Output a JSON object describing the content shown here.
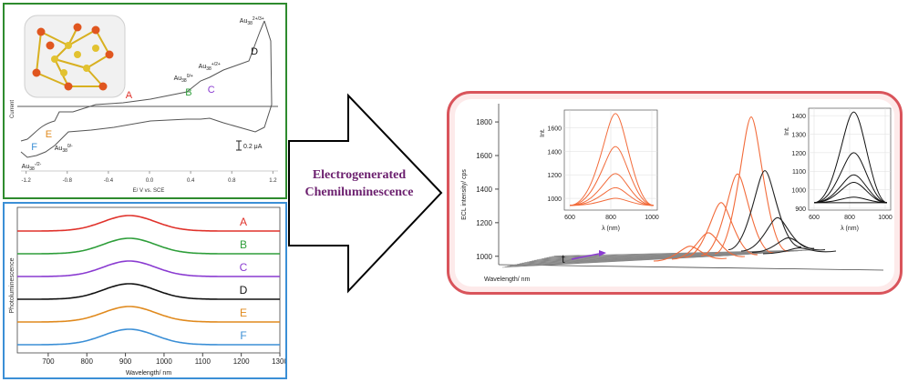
{
  "center_label": {
    "line1": "Electrogenerated",
    "line2": "Chemiluminescence"
  },
  "chart_data": [
    {
      "type": "line",
      "panel": "cyclic voltammogram",
      "title": "",
      "xlabel": "E/ V vs. SCE",
      "ylabel": "Current",
      "x_ticks": [
        "-1.2",
        "-0.8",
        "-0.4",
        "0.0",
        "0.4",
        "0.8",
        "1.2"
      ],
      "xlim": [
        -1.25,
        1.25
      ],
      "scale_bar": "0.2 μA",
      "peak_labels": [
        {
          "label": "A",
          "color": "#e0322b",
          "x": -0.2
        },
        {
          "label": "B",
          "color": "#2e9e3a",
          "x": 0.38
        },
        {
          "label": "C",
          "color": "#8a3bd1",
          "x": 0.6
        },
        {
          "label": "D",
          "color": "#111111",
          "x": 1.02
        },
        {
          "label": "E",
          "color": "#e08a1e",
          "x": -0.98
        },
        {
          "label": "F",
          "color": "#3b8fd6",
          "x": -1.12
        }
      ],
      "charge_states": [
        {
          "base": "Au",
          "sub": "38",
          "sup": "2+/3+",
          "x": 1.0
        },
        {
          "base": "Au",
          "sub": "38",
          "sup": "+/2+",
          "x": 0.6
        },
        {
          "base": "Au",
          "sub": "38",
          "sup": "0/+",
          "x": 0.36
        },
        {
          "base": "Au",
          "sub": "38",
          "sup": "0/-",
          "x": -0.8
        },
        {
          "base": "Au",
          "sub": "38",
          "sup": "-/2-",
          "x": -1.12
        }
      ]
    },
    {
      "type": "line",
      "panel": "photoluminescence spectra",
      "title": "",
      "xlabel": "Wavelength/ nm",
      "ylabel": "Photoluminescence",
      "x_ticks": [
        700,
        800,
        900,
        1000,
        1100,
        1200,
        1300
      ],
      "xlim": [
        620,
        1300
      ],
      "peak_nm": 910,
      "series": [
        {
          "name": "A",
          "color": "#e0322b"
        },
        {
          "name": "B",
          "color": "#2e9e3a"
        },
        {
          "name": "C",
          "color": "#8a3bd1"
        },
        {
          "name": "D",
          "color": "#111111"
        },
        {
          "name": "E",
          "color": "#e08a1e"
        },
        {
          "name": "F",
          "color": "#3b8fd6"
        }
      ]
    },
    {
      "type": "line",
      "panel": "ECL spectra vs time",
      "title": "",
      "xlabel": "Wavelength/ nm",
      "ylabel": "ECL intensity/ cps",
      "y_ticks": [
        1000,
        1200,
        1400,
        1600,
        1800
      ],
      "ylim": [
        950,
        1860
      ],
      "time_label": "t",
      "orange_peaks": [
        1060,
        1140,
        1320,
        1490,
        1830
      ],
      "black_peaks": [
        1050,
        1110,
        1230,
        1510
      ],
      "insets": [
        {
          "xlabel": "λ (nm)",
          "ylabel": "Int.",
          "x_ticks": [
            600,
            800,
            1000
          ],
          "y_ticks": [
            1000,
            1200,
            1400,
            1600
          ],
          "ylim": [
            900,
            1750
          ],
          "color": "#f26b3a",
          "peaks": [
            1000,
            1090,
            1210,
            1440,
            1720
          ]
        },
        {
          "xlabel": "λ (nm)",
          "ylabel": "Int.",
          "x_ticks": [
            600,
            800,
            1000
          ],
          "y_ticks": [
            900,
            1000,
            1100,
            1200,
            1300,
            1400
          ],
          "ylim": [
            890,
            1440
          ],
          "color": "#111111",
          "peaks": [
            930,
            960,
            1040,
            1080,
            1200,
            1420
          ]
        }
      ]
    }
  ]
}
